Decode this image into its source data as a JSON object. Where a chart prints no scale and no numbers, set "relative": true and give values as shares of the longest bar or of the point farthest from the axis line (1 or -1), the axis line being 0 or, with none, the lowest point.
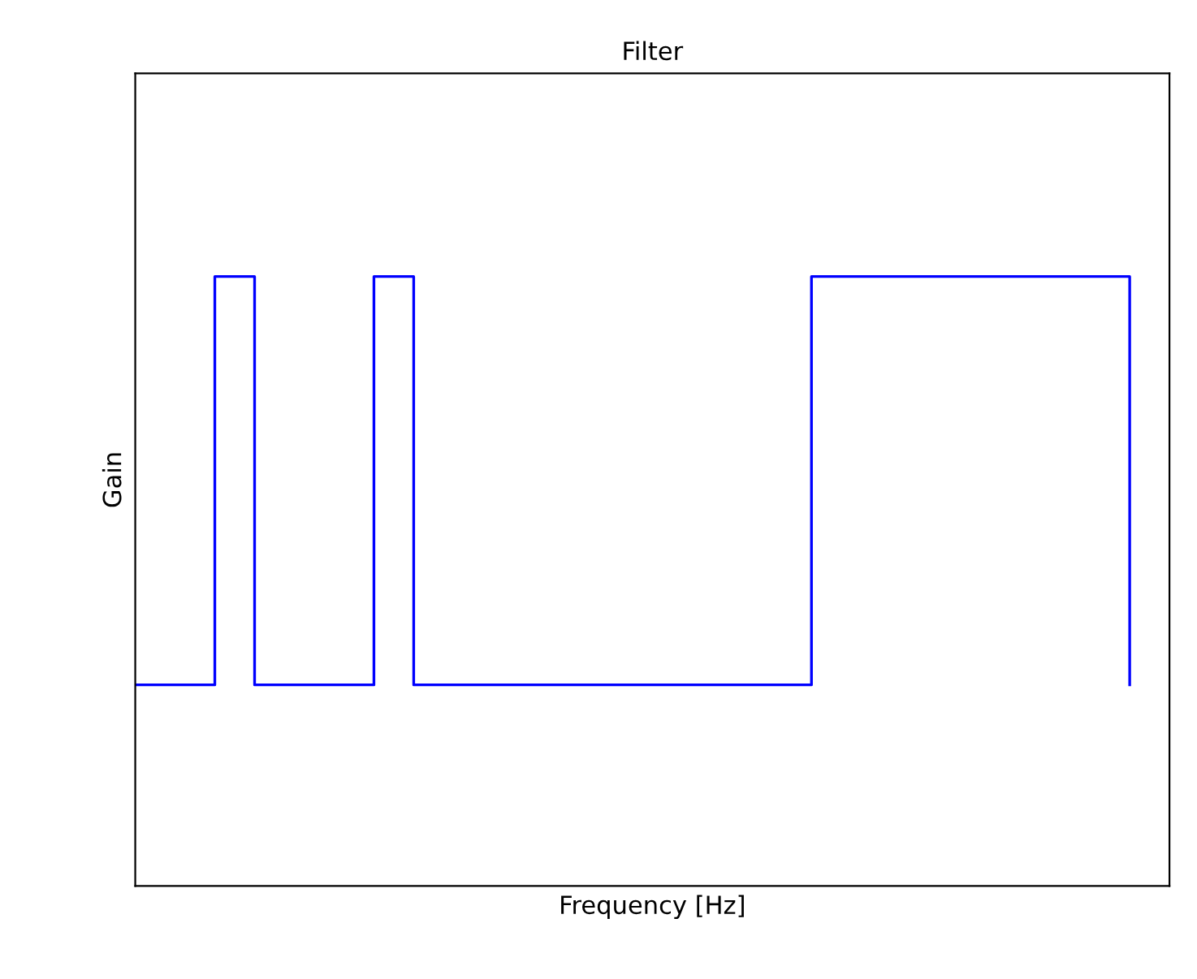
{
  "chart_data": {
    "type": "step",
    "title": "Filter",
    "xlabel": "Frequency [Hz]",
    "ylabel": "Gain",
    "relative": true,
    "categories": [
      null,
      null,
      null,
      null,
      null,
      null,
      null,
      null,
      null,
      null,
      null,
      null,
      null,
      null,
      null,
      null,
      null,
      null,
      null,
      null,
      null,
      null,
      null,
      null,
      null,
      null
    ],
    "series": [
      {
        "color": "#0000ff",
        "values": [
          0.33,
          0.33,
          1,
          0.33,
          0.33,
          0.33,
          1,
          0.33,
          0.33,
          0.33,
          0.33,
          0.33,
          0.33,
          0.33,
          0.33,
          0.33,
          0.33,
          1,
          1,
          1,
          1,
          1,
          1,
          1,
          1,
          0.33
        ]
      }
    ]
  }
}
